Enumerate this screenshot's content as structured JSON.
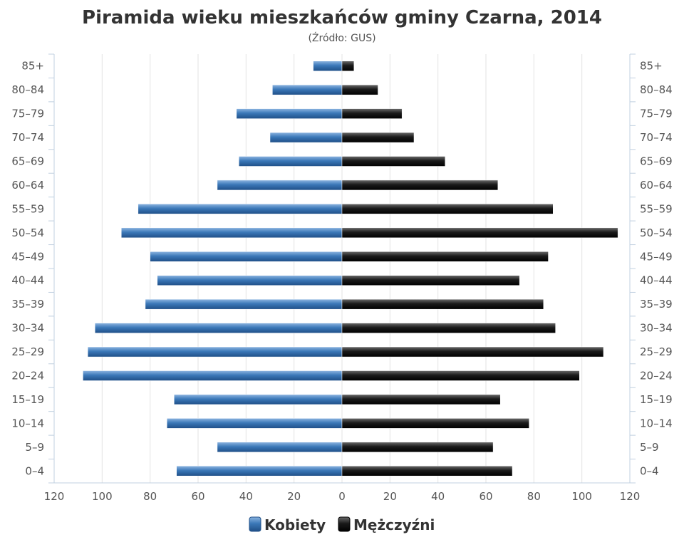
{
  "chart_data": {
    "type": "bar",
    "orientation": "horizontal-pyramid",
    "title": "Piramida wieku mieszkańców gminy Czarna, 2014",
    "subtitle": "(Źródło: GUS)",
    "categories": [
      "0–4",
      "5–9",
      "10–14",
      "15–19",
      "20–24",
      "25–29",
      "30–34",
      "35–39",
      "40–44",
      "45–49",
      "50–54",
      "55–59",
      "60–64",
      "65–69",
      "70–74",
      "75–79",
      "80–84",
      "85+"
    ],
    "series": [
      {
        "name": "Kobiety",
        "side": "left",
        "color": "#3b78b8",
        "values": [
          69,
          52,
          73,
          70,
          108,
          106,
          103,
          82,
          77,
          80,
          92,
          85,
          52,
          43,
          30,
          44,
          29,
          12
        ]
      },
      {
        "name": "Mężczyźni",
        "side": "right",
        "color": "#1a1a1a",
        "values": [
          71,
          63,
          78,
          66,
          99,
          109,
          89,
          84,
          74,
          86,
          115,
          88,
          65,
          43,
          30,
          25,
          15,
          5
        ]
      }
    ],
    "xlim": [
      -120,
      120
    ],
    "x_ticks": [
      120,
      100,
      80,
      60,
      40,
      20,
      0,
      20,
      40,
      60,
      80,
      100,
      120
    ],
    "grid": true,
    "legend_position": "bottom-center"
  }
}
